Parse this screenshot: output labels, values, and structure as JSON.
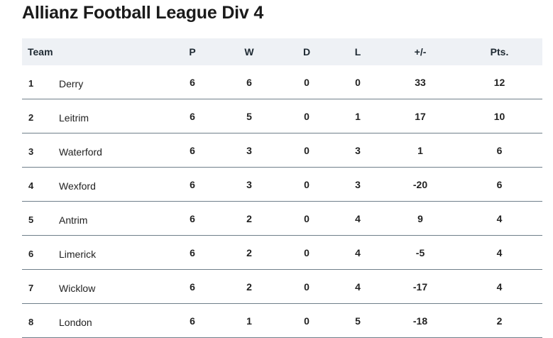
{
  "page_title": "Allianz Football League Div 4",
  "table": {
    "headers": {
      "team": "Team",
      "p": "P",
      "w": "W",
      "d": "D",
      "l": "L",
      "diff": "+/-",
      "pts": "Pts."
    },
    "rows": [
      {
        "pos": "1",
        "team": "Derry",
        "p": "6",
        "w": "6",
        "d": "0",
        "l": "0",
        "diff": "33",
        "pts": "12"
      },
      {
        "pos": "2",
        "team": "Leitrim",
        "p": "6",
        "w": "5",
        "d": "0",
        "l": "1",
        "diff": "17",
        "pts": "10"
      },
      {
        "pos": "3",
        "team": "Waterford",
        "p": "6",
        "w": "3",
        "d": "0",
        "l": "3",
        "diff": "1",
        "pts": "6"
      },
      {
        "pos": "4",
        "team": "Wexford",
        "p": "6",
        "w": "3",
        "d": "0",
        "l": "3",
        "diff": "-20",
        "pts": "6"
      },
      {
        "pos": "5",
        "team": "Antrim",
        "p": "6",
        "w": "2",
        "d": "0",
        "l": "4",
        "diff": "9",
        "pts": "4"
      },
      {
        "pos": "6",
        "team": "Limerick",
        "p": "6",
        "w": "2",
        "d": "0",
        "l": "4",
        "diff": "-5",
        "pts": "4"
      },
      {
        "pos": "7",
        "team": "Wicklow",
        "p": "6",
        "w": "2",
        "d": "0",
        "l": "4",
        "diff": "-17",
        "pts": "4"
      },
      {
        "pos": "8",
        "team": "London",
        "p": "6",
        "w": "1",
        "d": "0",
        "l": "5",
        "diff": "-18",
        "pts": "2"
      }
    ]
  }
}
